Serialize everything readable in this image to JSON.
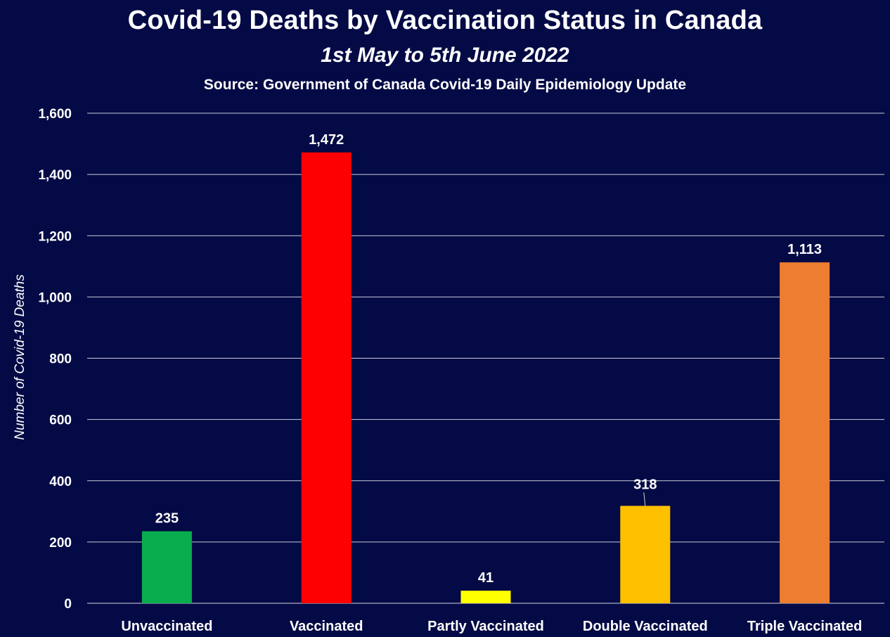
{
  "chart_data": {
    "type": "bar",
    "title": "Covid-19 Deaths by Vaccination Status in Canada",
    "subtitle": "1st May to 5th June 2022",
    "source": "Source: Government of Canada Covid-19 Daily Epidemiology Update",
    "xlabel": "",
    "ylabel": "Number of Covid-19 Deaths",
    "ylim": [
      0,
      1600
    ],
    "yticks": [
      0,
      200,
      400,
      600,
      800,
      1000,
      1200,
      1400,
      1600
    ],
    "ytick_labels": [
      "0",
      "200",
      "400",
      "600",
      "800",
      "1,000",
      "1,200",
      "1,400",
      "1,600"
    ],
    "grid": true,
    "categories": [
      "Unvaccinated",
      "Vaccinated",
      "Partly Vaccinated",
      "Double Vaccinated",
      "Triple Vaccinated"
    ],
    "values": [
      235,
      1472,
      41,
      318,
      1113
    ],
    "data_labels": [
      "235",
      "1,472",
      "41",
      "318",
      "1,113"
    ],
    "colors": [
      "#0aad4d",
      "#ff0000",
      "#ffff00",
      "#ffc000",
      "#ed7d31"
    ]
  }
}
